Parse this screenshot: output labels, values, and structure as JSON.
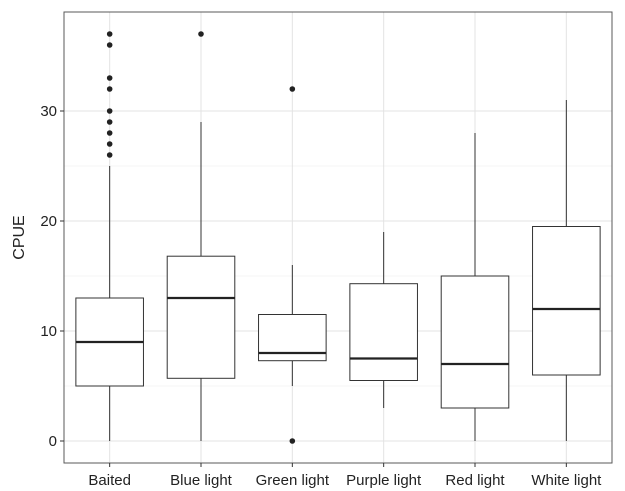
{
  "chart_data": {
    "type": "boxplot",
    "title": "",
    "xlabel": "",
    "ylabel": "CPUE",
    "ylim": [
      -2,
      39
    ],
    "y_ticks": [
      0,
      10,
      20,
      30
    ],
    "y_tick_labels": [
      "0",
      "10",
      "20",
      "30"
    ],
    "grid": true,
    "legend": "none",
    "categories": [
      "Baited",
      "Blue light",
      "Green light",
      "Purple light",
      "Red light",
      "White light"
    ],
    "boxes": [
      {
        "category": "Baited",
        "whisker_low": 0,
        "q1": 5,
        "median": 9,
        "q3": 13,
        "whisker_high": 25,
        "outliers": [
          26,
          27,
          28,
          29,
          30,
          32,
          33,
          36,
          37
        ]
      },
      {
        "category": "Blue light",
        "whisker_low": 0,
        "q1": 5.7,
        "median": 13,
        "q3": 16.8,
        "whisker_high": 29,
        "outliers": [
          37
        ]
      },
      {
        "category": "Green light",
        "whisker_low": 5,
        "q1": 7.3,
        "median": 8,
        "q3": 11.5,
        "whisker_high": 16,
        "outliers": [
          0,
          32
        ]
      },
      {
        "category": "Purple light",
        "whisker_low": 3,
        "q1": 5.5,
        "median": 7.5,
        "q3": 14.3,
        "whisker_high": 19,
        "outliers": []
      },
      {
        "category": "Red light",
        "whisker_low": 0,
        "q1": 3,
        "median": 7,
        "q3": 15,
        "whisker_high": 28,
        "outliers": []
      },
      {
        "category": "White light",
        "whisker_low": 0,
        "q1": 6,
        "median": 12,
        "q3": 19.5,
        "whisker_high": 31,
        "outliers": []
      }
    ]
  }
}
